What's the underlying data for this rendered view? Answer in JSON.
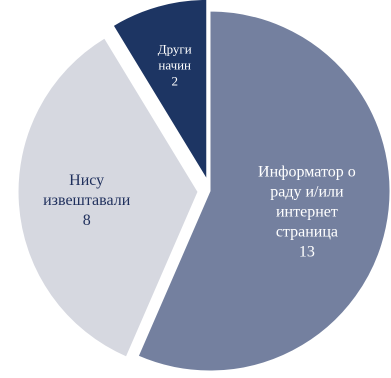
{
  "chart_data": {
    "type": "pie",
    "slices": [
      {
        "label_lines": [
          "Информатор о",
          "раду и/или",
          "интернет",
          "страница"
        ],
        "value": 13,
        "value_label": "13",
        "color": "#74809f",
        "text_color": "#ffffff",
        "exploded": false
      },
      {
        "label_lines": [
          "Нису",
          "извештавали"
        ],
        "value": 8,
        "value_label": "8",
        "color": "#d6d8e0",
        "text_color": "#1f2f5c",
        "exploded": true
      },
      {
        "label_lines": [
          "Други",
          "начин"
        ],
        "value": 2,
        "value_label": "2",
        "color": "#1d3563",
        "text_color": "#ffffff",
        "exploded": true
      }
    ]
  }
}
